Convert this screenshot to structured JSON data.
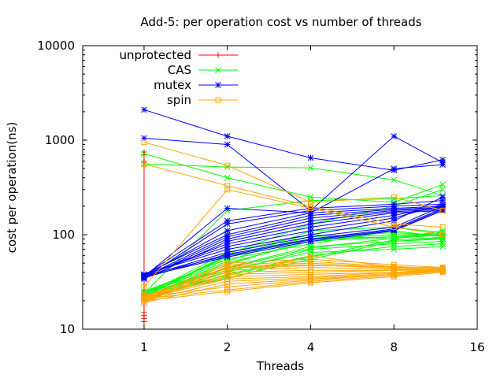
{
  "chart_data": {
    "type": "line",
    "title": "Add-5: per operation cost vs number of threads",
    "xlabel": "Threads",
    "ylabel": "cost per operation(ns)",
    "x_scale": "log2",
    "y_scale": "log10",
    "xlim": [
      0.6,
      16
    ],
    "ylim": [
      10,
      10000
    ],
    "x_ticks": [
      1,
      2,
      4,
      8,
      16
    ],
    "x_tick_labels": [
      "1",
      "2",
      "4",
      "8",
      "16"
    ],
    "y_ticks": [
      10,
      100,
      1000,
      10000
    ],
    "y_tick_labels": [
      "10",
      "100",
      "1000",
      "10000"
    ],
    "x_points": [
      1,
      2,
      4,
      8,
      12
    ],
    "legend_position": "top-left",
    "grid": false,
    "series": [
      {
        "name": "unprotected",
        "color": "#ff0000",
        "marker": "plus",
        "note": "only a vertical spread of points at 1 thread",
        "runs": [
          [
            750
          ],
          [
            700
          ],
          [
            600
          ],
          [
            35
          ],
          [
            20
          ],
          [
            15
          ],
          [
            14
          ],
          [
            13
          ],
          [
            12
          ]
        ]
      },
      {
        "name": "CAS",
        "color": "#00ff00",
        "marker": "cross",
        "runs": [
          [
            720,
            400,
            250,
            220,
            340
          ],
          [
            560,
            520,
            510,
            380,
            260
          ],
          [
            23,
            65,
            100,
            90,
            110
          ],
          [
            22,
            60,
            90,
            100,
            100
          ],
          [
            24,
            50,
            85,
            95,
            105
          ],
          [
            25,
            55,
            80,
            110,
            95
          ],
          [
            22,
            45,
            75,
            85,
            90
          ],
          [
            23,
            40,
            70,
            80,
            85
          ],
          [
            21,
            38,
            60,
            75,
            80
          ],
          [
            24,
            42,
            65,
            70,
            75
          ],
          [
            22,
            48,
            90,
            95,
            100
          ],
          [
            25,
            52,
            110,
            120,
            105
          ],
          [
            23,
            58,
            95,
            105,
            98
          ],
          [
            22,
            62,
            130,
            200,
            300
          ],
          [
            24,
            180,
            230,
            240,
            260
          ],
          [
            22,
            35,
            55,
            85,
            92
          ],
          [
            23,
            37,
            58,
            88,
            94
          ],
          [
            25,
            44,
            72,
            92,
            99
          ]
        ]
      },
      {
        "name": "mutex",
        "color": "#0000ff",
        "marker": "star",
        "runs": [
          [
            2100,
            1100,
            650,
            480,
            620
          ],
          [
            1050,
            900,
            180,
            1100,
            580
          ],
          [
            36,
            190,
            170,
            500,
            550
          ],
          [
            35,
            130,
            180,
            200,
            210
          ],
          [
            37,
            110,
            170,
            190,
            200
          ],
          [
            38,
            100,
            160,
            185,
            195
          ],
          [
            36,
            95,
            150,
            180,
            190
          ],
          [
            35,
            90,
            140,
            175,
            185
          ],
          [
            34,
            85,
            130,
            170,
            180
          ],
          [
            37,
            80,
            120,
            160,
            200
          ],
          [
            38,
            75,
            110,
            150,
            210
          ],
          [
            36,
            65,
            95,
            120,
            200
          ],
          [
            35,
            62,
            90,
            115,
            190
          ],
          [
            37,
            60,
            88,
            112,
            185
          ],
          [
            36,
            58,
            85,
            110,
            180
          ],
          [
            38,
            70,
            100,
            140,
            250
          ],
          [
            37,
            140,
            190,
            210,
            230
          ]
        ]
      },
      {
        "name": "spin",
        "color": "#ffa500",
        "marker": "square",
        "runs": [
          [
            950,
            540,
            220,
            250,
            180
          ],
          [
            560,
            330,
            200,
            130,
            120
          ],
          [
            28,
            300,
            190,
            120,
            100
          ],
          [
            22,
            50,
            55,
            48,
            45
          ],
          [
            21,
            48,
            52,
            46,
            44
          ],
          [
            20,
            46,
            50,
            45,
            43
          ],
          [
            19,
            45,
            48,
            44,
            42
          ],
          [
            22,
            44,
            47,
            46,
            44
          ],
          [
            20,
            42,
            45,
            43,
            41
          ],
          [
            21,
            40,
            42,
            42,
            42
          ],
          [
            20,
            38,
            40,
            42,
            43
          ],
          [
            22,
            36,
            38,
            40,
            42
          ],
          [
            21,
            34,
            36,
            40,
            43
          ],
          [
            20,
            32,
            35,
            39,
            42
          ],
          [
            19,
            30,
            34,
            38,
            41
          ],
          [
            22,
            28,
            33,
            38,
            42
          ],
          [
            21,
            26,
            32,
            37,
            41
          ],
          [
            20,
            25,
            31,
            36,
            40
          ],
          [
            23,
            34,
            60,
            45,
            45
          ]
        ]
      }
    ]
  }
}
